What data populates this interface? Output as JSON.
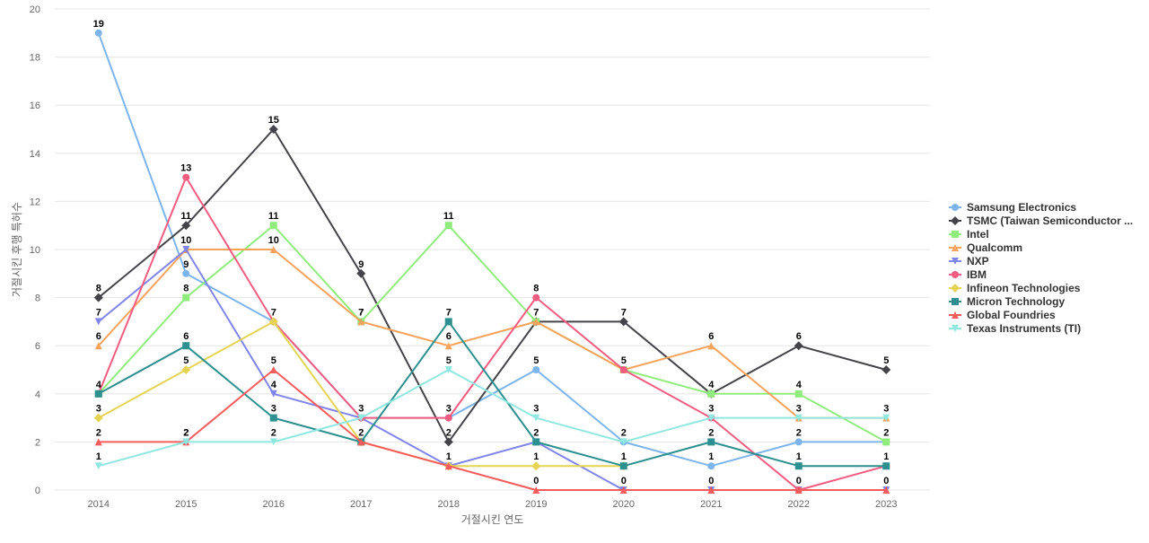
{
  "chart_data": {
    "type": "line",
    "title": "",
    "xlabel": "거절시킨 연도",
    "ylabel": "거절시킨 후행 특허수",
    "ylim": [
      0,
      20
    ],
    "yticks": [
      0,
      2,
      4,
      6,
      8,
      10,
      12,
      14,
      16,
      18,
      20
    ],
    "grid": true,
    "legend_position": "right",
    "categories": [
      "2014",
      "2015",
      "2016",
      "2017",
      "2018",
      "2019",
      "2020",
      "2021",
      "2022",
      "2023"
    ],
    "series": [
      {
        "name": "Samsung Electronics",
        "color": "#7cb5ec",
        "marker": "circle",
        "values": [
          19,
          9,
          7,
          3,
          3,
          5,
          2,
          1,
          2,
          2
        ]
      },
      {
        "name": "TSMC (Taiwan Semiconductor ...",
        "color": "#434348",
        "marker": "diamond",
        "values": [
          8,
          11,
          15,
          9,
          2,
          7,
          7,
          4,
          6,
          5
        ]
      },
      {
        "name": "Intel",
        "color": "#90ed7d",
        "marker": "square",
        "values": [
          4,
          8,
          11,
          7,
          11,
          7,
          5,
          4,
          4,
          2
        ]
      },
      {
        "name": "Qualcomm",
        "color": "#f7a35c",
        "marker": "triangle",
        "values": [
          6,
          10,
          10,
          7,
          6,
          7,
          5,
          6,
          3,
          3
        ]
      },
      {
        "name": "NXP",
        "color": "#8085e9",
        "marker": "triangle-down",
        "values": [
          7,
          10,
          4,
          3,
          1,
          2,
          0,
          0,
          0,
          0
        ]
      },
      {
        "name": "IBM",
        "color": "#f15c80",
        "marker": "circle",
        "values": [
          4,
          13,
          7,
          3,
          3,
          8,
          5,
          3,
          0,
          1
        ]
      },
      {
        "name": "Infineon Technologies",
        "color": "#e4d354",
        "marker": "diamond",
        "values": [
          3,
          5,
          7,
          2,
          1,
          1,
          1,
          null,
          null,
          null
        ]
      },
      {
        "name": "Micron Technology",
        "color": "#2b908f",
        "marker": "square",
        "values": [
          4,
          6,
          3,
          2,
          7,
          2,
          1,
          2,
          1,
          1
        ]
      },
      {
        "name": "Global Foundries",
        "color": "#f45b5b",
        "marker": "triangle",
        "values": [
          2,
          2,
          5,
          2,
          1,
          0,
          0,
          0,
          0,
          0
        ]
      },
      {
        "name": "Texas Instruments (TI)",
        "color": "#91e8e1",
        "marker": "triangle-down",
        "values": [
          1,
          2,
          2,
          3,
          5,
          3,
          2,
          3,
          3,
          3
        ]
      }
    ],
    "data_labels": [
      {
        "x": "2014",
        "values": [
          19,
          8,
          7,
          6,
          4,
          3,
          2,
          1
        ]
      },
      {
        "x": "2015",
        "values": [
          13,
          11,
          10,
          9,
          8,
          6,
          5,
          2,
          2
        ]
      },
      {
        "x": "2016",
        "values": [
          15,
          11,
          10,
          7,
          5,
          4,
          3,
          2
        ]
      },
      {
        "x": "2017",
        "values": [
          9,
          7,
          7,
          3,
          2
        ]
      },
      {
        "x": "2018",
        "values": [
          11,
          7,
          6,
          5,
          3,
          2,
          1
        ]
      },
      {
        "x": "2019",
        "values": [
          8,
          7,
          5,
          3,
          2,
          1,
          0
        ]
      },
      {
        "x": "2020",
        "values": [
          7,
          5,
          2,
          1,
          0
        ]
      },
      {
        "x": "2021",
        "values": [
          6,
          4,
          3,
          2,
          1,
          0
        ]
      },
      {
        "x": "2022",
        "values": [
          6,
          4,
          3,
          2,
          1,
          0
        ]
      },
      {
        "x": "2023",
        "values": [
          5,
          3,
          2,
          1,
          0
        ]
      }
    ]
  }
}
